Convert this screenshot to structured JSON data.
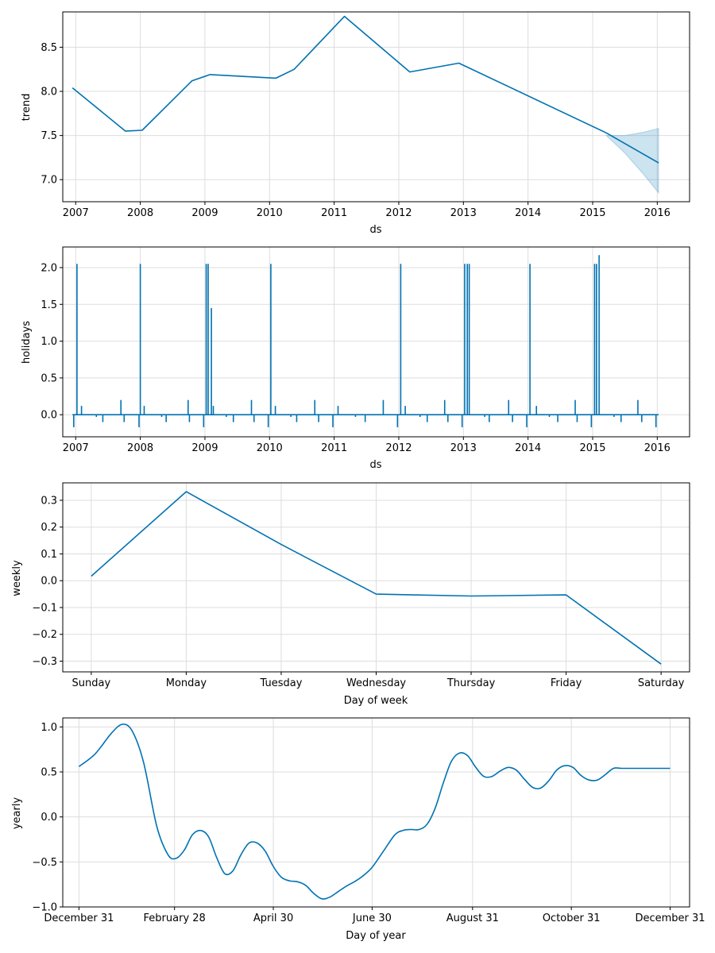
{
  "colors": {
    "series": "#0072B2",
    "band": "#0072B2",
    "grid": "#dddddd"
  },
  "chart_data": [
    {
      "id": "trend",
      "type": "line",
      "xlabel": "ds",
      "ylabel": "trend",
      "xlim": [
        2006.8,
        2016.5
      ],
      "ylim": [
        6.75,
        8.9
      ],
      "xticks": [
        2007,
        2008,
        2009,
        2010,
        2011,
        2012,
        2013,
        2014,
        2015,
        2016
      ],
      "xtick_labels": [
        "2007",
        "2008",
        "2009",
        "2010",
        "2011",
        "2012",
        "2013",
        "2014",
        "2015",
        "2016"
      ],
      "yticks": [
        7.0,
        7.5,
        8.0,
        8.5
      ],
      "ytick_labels": [
        "7.0",
        "7.5",
        "8.0",
        "8.5"
      ],
      "x": [
        2006.95,
        2007.77,
        2008.03,
        2008.8,
        2009.08,
        2010.1,
        2010.38,
        2011.16,
        2012.17,
        2012.93,
        2015.21,
        2016.02
      ],
      "y": [
        8.04,
        7.55,
        7.56,
        8.12,
        8.19,
        8.15,
        8.25,
        8.85,
        8.22,
        8.32,
        7.53,
        7.19
      ],
      "uncertainty": {
        "x": [
          2015.21,
          2015.5,
          2015.8,
          2016.02
        ],
        "upper": [
          7.5,
          7.5,
          7.54,
          7.58
        ],
        "lower": [
          7.5,
          7.3,
          7.05,
          6.85
        ]
      }
    },
    {
      "id": "holidays",
      "type": "line",
      "xlabel": "ds",
      "ylabel": "holidays",
      "xlim": [
        2006.8,
        2016.5
      ],
      "ylim": [
        -0.3,
        2.28
      ],
      "xticks": [
        2007,
        2008,
        2009,
        2010,
        2011,
        2012,
        2013,
        2014,
        2015,
        2016
      ],
      "xtick_labels": [
        "2007",
        "2008",
        "2009",
        "2010",
        "2011",
        "2012",
        "2013",
        "2014",
        "2015",
        "2016"
      ],
      "yticks": [
        0.0,
        0.5,
        1.0,
        1.5,
        2.0
      ],
      "ytick_labels": [
        "0.0",
        "0.5",
        "1.0",
        "1.5",
        "2.0"
      ],
      "baseline": 0.0,
      "x_range": [
        2006.95,
        2016.02
      ],
      "spikes": [
        {
          "x": 2006.97,
          "v": -0.17
        },
        {
          "x": 2007.02,
          "v": 2.05
        },
        {
          "x": 2007.09,
          "v": 0.12
        },
        {
          "x": 2007.32,
          "v": -0.03
        },
        {
          "x": 2007.42,
          "v": -0.1
        },
        {
          "x": 2007.7,
          "v": 0.2
        },
        {
          "x": 2007.75,
          "v": -0.1
        },
        {
          "x": 2007.98,
          "v": -0.17
        },
        {
          "x": 2008.0,
          "v": 2.05
        },
        {
          "x": 2008.06,
          "v": 0.12
        },
        {
          "x": 2008.33,
          "v": -0.03
        },
        {
          "x": 2008.4,
          "v": -0.1
        },
        {
          "x": 2008.74,
          "v": 0.2
        },
        {
          "x": 2008.76,
          "v": -0.1
        },
        {
          "x": 2008.98,
          "v": -0.17
        },
        {
          "x": 2009.02,
          "v": 2.05
        },
        {
          "x": 2009.05,
          "v": 2.05
        },
        {
          "x": 2009.1,
          "v": 1.45
        },
        {
          "x": 2009.13,
          "v": 0.12
        },
        {
          "x": 2009.33,
          "v": -0.03
        },
        {
          "x": 2009.44,
          "v": -0.1
        },
        {
          "x": 2009.72,
          "v": 0.2
        },
        {
          "x": 2009.76,
          "v": -0.1
        },
        {
          "x": 2009.98,
          "v": -0.17
        },
        {
          "x": 2010.02,
          "v": 2.05
        },
        {
          "x": 2010.09,
          "v": 0.12
        },
        {
          "x": 2010.33,
          "v": -0.03
        },
        {
          "x": 2010.42,
          "v": -0.1
        },
        {
          "x": 2010.7,
          "v": 0.2
        },
        {
          "x": 2010.76,
          "v": -0.1
        },
        {
          "x": 2010.98,
          "v": -0.17
        },
        {
          "x": 2011.06,
          "v": 0.12
        },
        {
          "x": 2011.33,
          "v": -0.03
        },
        {
          "x": 2011.48,
          "v": -0.1
        },
        {
          "x": 2011.76,
          "v": 0.2
        },
        {
          "x": 2011.98,
          "v": -0.17
        },
        {
          "x": 2012.03,
          "v": 2.05
        },
        {
          "x": 2012.1,
          "v": 0.12
        },
        {
          "x": 2012.33,
          "v": -0.03
        },
        {
          "x": 2012.44,
          "v": -0.1
        },
        {
          "x": 2012.71,
          "v": 0.2
        },
        {
          "x": 2012.76,
          "v": -0.1
        },
        {
          "x": 2012.98,
          "v": -0.17
        },
        {
          "x": 2013.02,
          "v": 2.05
        },
        {
          "x": 2013.06,
          "v": 2.05
        },
        {
          "x": 2013.09,
          "v": 2.05
        },
        {
          "x": 2013.33,
          "v": -0.03
        },
        {
          "x": 2013.4,
          "v": -0.1
        },
        {
          "x": 2013.7,
          "v": 0.2
        },
        {
          "x": 2013.76,
          "v": -0.1
        },
        {
          "x": 2013.98,
          "v": -0.17
        },
        {
          "x": 2014.03,
          "v": 2.05
        },
        {
          "x": 2014.13,
          "v": 0.12
        },
        {
          "x": 2014.33,
          "v": -0.03
        },
        {
          "x": 2014.46,
          "v": -0.1
        },
        {
          "x": 2014.73,
          "v": 0.2
        },
        {
          "x": 2014.76,
          "v": -0.1
        },
        {
          "x": 2014.98,
          "v": -0.17
        },
        {
          "x": 2015.03,
          "v": 2.05
        },
        {
          "x": 2015.06,
          "v": 2.05
        },
        {
          "x": 2015.1,
          "v": 2.17
        },
        {
          "x": 2015.33,
          "v": -0.03
        },
        {
          "x": 2015.44,
          "v": -0.1
        },
        {
          "x": 2015.7,
          "v": 0.2
        },
        {
          "x": 2015.76,
          "v": -0.1
        },
        {
          "x": 2015.98,
          "v": -0.17
        }
      ]
    },
    {
      "id": "weekly",
      "type": "line",
      "xlabel": "Day of week",
      "ylabel": "weekly",
      "xlim": [
        -0.3,
        6.3
      ],
      "ylim": [
        -0.34,
        0.365
      ],
      "xticks": [
        0,
        1,
        2,
        3,
        4,
        5,
        6
      ],
      "xtick_labels": [
        "Sunday",
        "Monday",
        "Tuesday",
        "Wednesday",
        "Thursday",
        "Friday",
        "Saturday"
      ],
      "yticks": [
        -0.3,
        -0.2,
        -0.1,
        0.0,
        0.1,
        0.2,
        0.3
      ],
      "ytick_labels": [
        "−0.3",
        "−0.2",
        "−0.1",
        "0.0",
        "0.1",
        "0.2",
        "0.3"
      ],
      "x": [
        0,
        1,
        2,
        3,
        4,
        5,
        6
      ],
      "y": [
        0.017,
        0.332,
        0.135,
        -0.05,
        -0.057,
        -0.053,
        -0.311
      ]
    },
    {
      "id": "yearly",
      "type": "line",
      "xlabel": "Day of year",
      "ylabel": "yearly",
      "xlim": [
        -10,
        377
      ],
      "ylim": [
        -1.0,
        1.1
      ],
      "xticks": [
        0,
        59,
        120,
        181,
        243,
        304,
        365
      ],
      "xtick_labels": [
        "December 31",
        "February 28",
        "April 30",
        "June 30",
        "August 31",
        "October 31",
        "December 31"
      ],
      "yticks": [
        -1.0,
        -0.5,
        0.0,
        0.5,
        1.0
      ],
      "ytick_labels": [
        "−1.0",
        "−0.5",
        "0.0",
        "0.5",
        "1.0"
      ],
      "x": [
        0,
        10,
        20,
        27,
        33,
        40,
        48,
        55,
        60,
        65,
        70,
        75,
        80,
        85,
        90,
        95,
        100,
        105,
        110,
        115,
        120,
        125,
        130,
        135,
        140,
        145,
        150,
        155,
        160,
        165,
        170,
        175,
        181,
        188,
        195,
        200,
        205,
        210,
        215,
        220,
        225,
        230,
        235,
        240,
        245,
        250,
        255,
        260,
        265,
        270,
        275,
        280,
        285,
        290,
        295,
        300,
        305,
        310,
        315,
        320,
        325,
        330,
        335,
        340,
        345,
        350,
        355,
        360,
        365
      ],
      "y": [
        0.56,
        0.7,
        0.93,
        1.03,
        0.95,
        0.6,
        -0.1,
        -0.42,
        -0.46,
        -0.37,
        -0.2,
        -0.15,
        -0.22,
        -0.45,
        -0.63,
        -0.6,
        -0.42,
        -0.29,
        -0.29,
        -0.38,
        -0.55,
        -0.67,
        -0.71,
        -0.72,
        -0.76,
        -0.85,
        -0.91,
        -0.89,
        -0.83,
        -0.77,
        -0.72,
        -0.66,
        -0.56,
        -0.38,
        -0.2,
        -0.15,
        -0.14,
        -0.14,
        -0.08,
        0.1,
        0.38,
        0.62,
        0.71,
        0.68,
        0.55,
        0.45,
        0.45,
        0.51,
        0.55,
        0.52,
        0.42,
        0.33,
        0.32,
        0.4,
        0.52,
        0.57,
        0.55,
        0.46,
        0.41,
        0.41,
        0.47,
        0.54,
        0.54,
        0.54,
        0.54,
        0.54,
        0.54,
        0.54,
        0.54
      ]
    }
  ]
}
